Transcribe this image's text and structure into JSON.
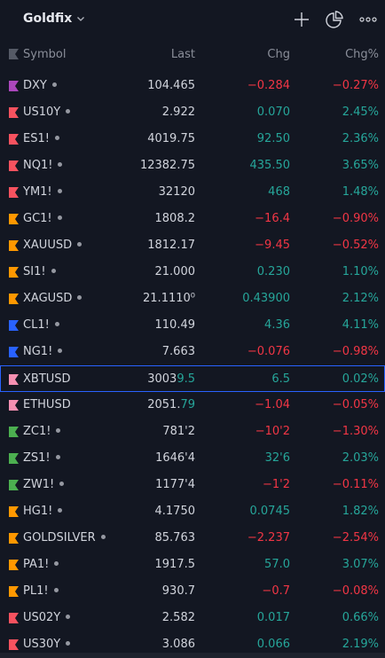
{
  "header": {
    "title": "Goldfix",
    "icons": [
      "chevron-down-icon",
      "plus-icon",
      "pie-chart-icon",
      "more-icon"
    ]
  },
  "columns": {
    "symbol": "Symbol",
    "last": "Last",
    "chg": "Chg",
    "chgp": "Chg%"
  },
  "colors": {
    "up": "#26a69a",
    "down": "#f23645",
    "selection": "#2962ff",
    "background": "#131722"
  },
  "rows": [
    {
      "symbol": "DXY",
      "dot": true,
      "flag": "#ab47bc",
      "last": "104.465",
      "last_hl": "",
      "chg": "−0.284",
      "chgp": "−0.27%",
      "dir": "down"
    },
    {
      "symbol": "US10Y",
      "dot": true,
      "flag": "#f7525f",
      "last": "2.922",
      "last_hl": "",
      "chg": "0.070",
      "chgp": "2.45%",
      "dir": "up"
    },
    {
      "symbol": "ES1!",
      "dot": true,
      "flag": "#f7525f",
      "last": "4019.75",
      "last_hl": "",
      "chg": "92.50",
      "chgp": "2.36%",
      "dir": "up"
    },
    {
      "symbol": "NQ1!",
      "dot": true,
      "flag": "#f7525f",
      "last": "12382.75",
      "last_hl": "",
      "chg": "435.50",
      "chgp": "3.65%",
      "dir": "up"
    },
    {
      "symbol": "YM1!",
      "dot": true,
      "flag": "#f7525f",
      "last": "32120",
      "last_hl": "",
      "chg": "468",
      "chgp": "1.48%",
      "dir": "up"
    },
    {
      "symbol": "GC1!",
      "dot": true,
      "flag": "#ff9800",
      "last": "1808.2",
      "last_hl": "",
      "chg": "−16.4",
      "chgp": "−0.90%",
      "dir": "down"
    },
    {
      "symbol": "XAUUSD",
      "dot": true,
      "flag": "#ff9800",
      "last": "1812.17",
      "last_hl": "",
      "chg": "−9.45",
      "chgp": "−0.52%",
      "dir": "down"
    },
    {
      "symbol": "SI1!",
      "dot": true,
      "flag": "#ff9800",
      "last": "21.000",
      "last_hl": "",
      "chg": "0.230",
      "chgp": "1.10%",
      "dir": "up"
    },
    {
      "symbol": "XAGUSD",
      "dot": true,
      "flag": "#ff9800",
      "last": "21.1110⁰",
      "last_hl": "",
      "chg": "0.43900",
      "chgp": "2.12%",
      "dir": "up"
    },
    {
      "symbol": "CL1!",
      "dot": true,
      "flag": "#2962ff",
      "last": "110.49",
      "last_hl": "",
      "chg": "4.36",
      "chgp": "4.11%",
      "dir": "up"
    },
    {
      "symbol": "NG1!",
      "dot": true,
      "flag": "#2962ff",
      "last": "7.663",
      "last_hl": "",
      "chg": "−0.076",
      "chgp": "−0.98%",
      "dir": "down"
    },
    {
      "symbol": "XBTUSD",
      "dot": false,
      "flag": "#f48fb1",
      "last": "3003",
      "last_hl": "9.5",
      "chg": "6.5",
      "chgp": "0.02%",
      "dir": "up",
      "selected": true
    },
    {
      "symbol": "ETHUSD",
      "dot": false,
      "flag": "#f48fb1",
      "last": "2051.",
      "last_hl": "79",
      "chg": "−1.04",
      "chgp": "−0.05%",
      "dir": "down"
    },
    {
      "symbol": "ZC1!",
      "dot": true,
      "flag": "#4caf50",
      "last": "781'2",
      "last_hl": "",
      "chg": "−10'2",
      "chgp": "−1.30%",
      "dir": "down"
    },
    {
      "symbol": "ZS1!",
      "dot": true,
      "flag": "#4caf50",
      "last": "1646'4",
      "last_hl": "",
      "chg": "32'6",
      "chgp": "2.03%",
      "dir": "up"
    },
    {
      "symbol": "ZW1!",
      "dot": true,
      "flag": "#4caf50",
      "last": "1177'4",
      "last_hl": "",
      "chg": "−1'2",
      "chgp": "−0.11%",
      "dir": "down"
    },
    {
      "symbol": "HG1!",
      "dot": true,
      "flag": "#ff9800",
      "last": "4.1750",
      "last_hl": "",
      "chg": "0.0745",
      "chgp": "1.82%",
      "dir": "up"
    },
    {
      "symbol": "GOLDSILVER",
      "dot": true,
      "flag": "#ff9800",
      "last": "85.763",
      "last_hl": "",
      "chg": "−2.237",
      "chgp": "−2.54%",
      "dir": "down"
    },
    {
      "symbol": "PA1!",
      "dot": true,
      "flag": "#ff9800",
      "last": "1917.5",
      "last_hl": "",
      "chg": "57.0",
      "chgp": "3.07%",
      "dir": "up"
    },
    {
      "symbol": "PL1!",
      "dot": true,
      "flag": "#ff9800",
      "last": "930.7",
      "last_hl": "",
      "chg": "−0.7",
      "chgp": "−0.08%",
      "dir": "down"
    },
    {
      "symbol": "US02Y",
      "dot": true,
      "flag": "#f7525f",
      "last": "2.582",
      "last_hl": "",
      "chg": "0.017",
      "chgp": "0.66%",
      "dir": "up"
    },
    {
      "symbol": "US30Y",
      "dot": true,
      "flag": "#f7525f",
      "last": "3.086",
      "last_hl": "",
      "chg": "0.066",
      "chgp": "2.19%",
      "dir": "up"
    }
  ]
}
